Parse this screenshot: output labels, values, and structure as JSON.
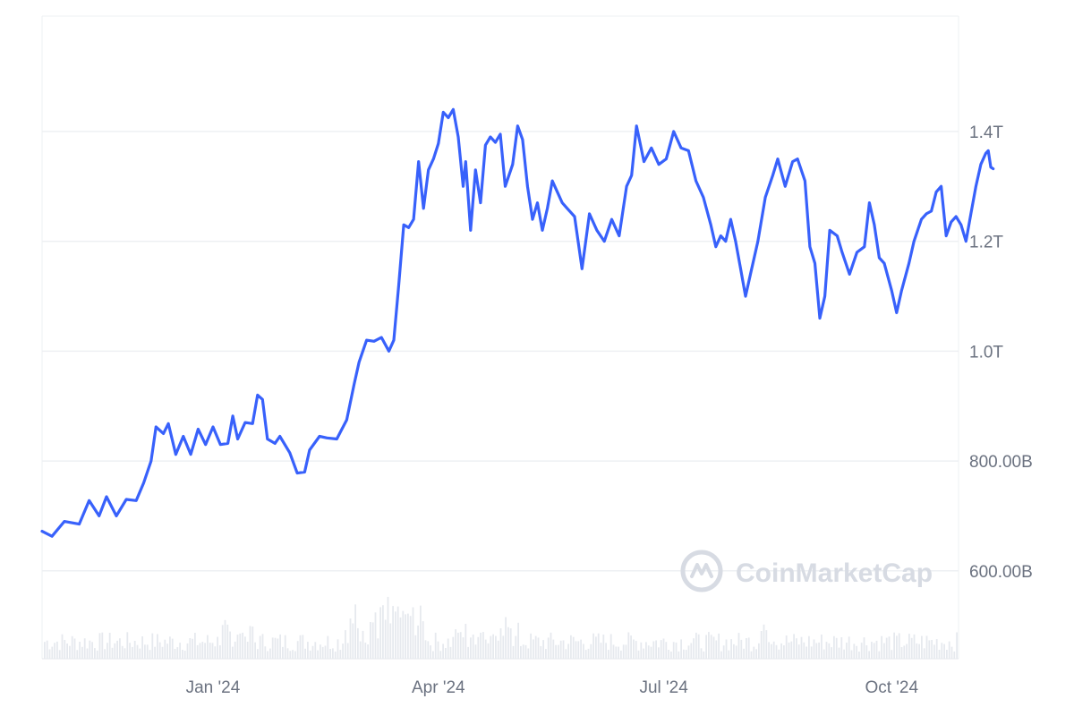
{
  "chart_data": {
    "type": "line",
    "title": "",
    "xlabel": "",
    "ylabel": "",
    "x_tick_labels": [
      "Jan '24",
      "Apr '24",
      "Jul '24",
      "Oct '24"
    ],
    "x_tick_dates": [
      "2024-01-01",
      "2024-04-01",
      "2024-07-01",
      "2024-10-01"
    ],
    "y_tick_labels": [
      "600.00B",
      "800.00B",
      "1.0T",
      "1.2T",
      "1.4T"
    ],
    "y_tick_values": [
      600,
      800,
      1000,
      1200,
      1400
    ],
    "y_unit": "billions USD",
    "ylim": [
      440,
      1610
    ],
    "xlim": [
      "2023-10-24",
      "2024-10-28"
    ],
    "grid": "horizontal",
    "series": [
      {
        "color": "#3861fb",
        "points": [
          [
            "2023-10-24",
            672
          ],
          [
            "2023-10-28",
            663
          ],
          [
            "2023-11-02",
            690
          ],
          [
            "2023-11-08",
            685
          ],
          [
            "2023-11-12",
            728
          ],
          [
            "2023-11-16",
            700
          ],
          [
            "2023-11-19",
            735
          ],
          [
            "2023-11-23",
            700
          ],
          [
            "2023-11-27",
            730
          ],
          [
            "2023-12-01",
            728
          ],
          [
            "2023-12-04",
            760
          ],
          [
            "2023-12-07",
            800
          ],
          [
            "2023-12-09",
            862
          ],
          [
            "2023-12-12",
            850
          ],
          [
            "2023-12-14",
            868
          ],
          [
            "2023-12-17",
            812
          ],
          [
            "2023-12-20",
            845
          ],
          [
            "2023-12-23",
            812
          ],
          [
            "2023-12-26",
            858
          ],
          [
            "2023-12-29",
            830
          ],
          [
            "2024-01-01",
            862
          ],
          [
            "2024-01-04",
            830
          ],
          [
            "2024-01-07",
            832
          ],
          [
            "2024-01-09",
            882
          ],
          [
            "2024-01-11",
            840
          ],
          [
            "2024-01-14",
            870
          ],
          [
            "2024-01-17",
            868
          ],
          [
            "2024-01-19",
            920
          ],
          [
            "2024-01-21",
            912
          ],
          [
            "2024-01-23",
            840
          ],
          [
            "2024-01-26",
            832
          ],
          [
            "2024-01-28",
            845
          ],
          [
            "2024-02-01",
            815
          ],
          [
            "2024-02-04",
            778
          ],
          [
            "2024-02-07",
            780
          ],
          [
            "2024-02-09",
            820
          ],
          [
            "2024-02-13",
            845
          ],
          [
            "2024-02-16",
            842
          ],
          [
            "2024-02-20",
            840
          ],
          [
            "2024-02-24",
            875
          ],
          [
            "2024-02-27",
            940
          ],
          [
            "2024-02-29",
            980
          ],
          [
            "2024-03-03",
            1020
          ],
          [
            "2024-03-06",
            1018
          ],
          [
            "2024-03-09",
            1025
          ],
          [
            "2024-03-12",
            1000
          ],
          [
            "2024-03-14",
            1020
          ],
          [
            "2024-03-16",
            1120
          ],
          [
            "2024-03-18",
            1230
          ],
          [
            "2024-03-20",
            1225
          ],
          [
            "2024-03-22",
            1240
          ],
          [
            "2024-03-24",
            1345
          ],
          [
            "2024-03-26",
            1260
          ],
          [
            "2024-03-28",
            1330
          ],
          [
            "2024-03-30",
            1350
          ],
          [
            "2024-04-01",
            1378
          ],
          [
            "2024-04-03",
            1435
          ],
          [
            "2024-04-05",
            1425
          ],
          [
            "2024-04-07",
            1440
          ],
          [
            "2024-04-09",
            1390
          ],
          [
            "2024-04-11",
            1300
          ],
          [
            "2024-04-12",
            1345
          ],
          [
            "2024-04-14",
            1220
          ],
          [
            "2024-04-16",
            1330
          ],
          [
            "2024-04-18",
            1270
          ],
          [
            "2024-04-20",
            1375
          ],
          [
            "2024-04-22",
            1390
          ],
          [
            "2024-04-24",
            1380
          ],
          [
            "2024-04-26",
            1395
          ],
          [
            "2024-04-28",
            1300
          ],
          [
            "2024-05-01",
            1340
          ],
          [
            "2024-05-03",
            1410
          ],
          [
            "2024-05-05",
            1385
          ],
          [
            "2024-05-07",
            1300
          ],
          [
            "2024-05-09",
            1240
          ],
          [
            "2024-05-11",
            1270
          ],
          [
            "2024-05-13",
            1220
          ],
          [
            "2024-05-15",
            1260
          ],
          [
            "2024-05-17",
            1310
          ],
          [
            "2024-05-19",
            1290
          ],
          [
            "2024-05-21",
            1270
          ],
          [
            "2024-05-23",
            1260
          ],
          [
            "2024-05-26",
            1245
          ],
          [
            "2024-05-29",
            1150
          ],
          [
            "2024-06-01",
            1250
          ],
          [
            "2024-06-04",
            1220
          ],
          [
            "2024-06-07",
            1200
          ],
          [
            "2024-06-10",
            1240
          ],
          [
            "2024-06-13",
            1210
          ],
          [
            "2024-06-16",
            1300
          ],
          [
            "2024-06-18",
            1320
          ],
          [
            "2024-06-20",
            1410
          ],
          [
            "2024-06-23",
            1345
          ],
          [
            "2024-06-26",
            1370
          ],
          [
            "2024-06-29",
            1340
          ],
          [
            "2024-07-02",
            1350
          ],
          [
            "2024-07-05",
            1400
          ],
          [
            "2024-07-08",
            1370
          ],
          [
            "2024-07-11",
            1365
          ],
          [
            "2024-07-14",
            1310
          ],
          [
            "2024-07-17",
            1280
          ],
          [
            "2024-07-20",
            1230
          ],
          [
            "2024-07-22",
            1190
          ],
          [
            "2024-07-24",
            1210
          ],
          [
            "2024-07-26",
            1200
          ],
          [
            "2024-07-28",
            1240
          ],
          [
            "2024-07-30",
            1200
          ],
          [
            "2024-08-01",
            1150
          ],
          [
            "2024-08-03",
            1100
          ],
          [
            "2024-08-05",
            1140
          ],
          [
            "2024-08-08",
            1200
          ],
          [
            "2024-08-11",
            1280
          ],
          [
            "2024-08-14",
            1320
          ],
          [
            "2024-08-16",
            1350
          ],
          [
            "2024-08-19",
            1300
          ],
          [
            "2024-08-22",
            1345
          ],
          [
            "2024-08-24",
            1350
          ],
          [
            "2024-08-27",
            1310
          ],
          [
            "2024-08-29",
            1190
          ],
          [
            "2024-08-31",
            1160
          ],
          [
            "2024-09-02",
            1060
          ],
          [
            "2024-09-04",
            1100
          ],
          [
            "2024-09-06",
            1220
          ],
          [
            "2024-09-09",
            1210
          ],
          [
            "2024-09-11",
            1180
          ],
          [
            "2024-09-14",
            1140
          ],
          [
            "2024-09-17",
            1180
          ],
          [
            "2024-09-20",
            1190
          ],
          [
            "2024-09-22",
            1270
          ],
          [
            "2024-09-24",
            1230
          ],
          [
            "2024-09-26",
            1170
          ],
          [
            "2024-09-28",
            1160
          ],
          [
            "2024-10-01",
            1110
          ],
          [
            "2024-10-03",
            1070
          ],
          [
            "2024-10-05",
            1110
          ],
          [
            "2024-10-08",
            1160
          ],
          [
            "2024-10-10",
            1200
          ],
          [
            "2024-10-13",
            1240
          ],
          [
            "2024-10-15",
            1250
          ],
          [
            "2024-10-17",
            1255
          ],
          [
            "2024-10-19",
            1290
          ],
          [
            "2024-10-21",
            1300
          ],
          [
            "2024-10-23",
            1210
          ],
          [
            "2024-10-25",
            1235
          ],
          [
            "2024-10-27",
            1245
          ],
          [
            "2024-10-29",
            1230
          ],
          [
            "2024-10-31",
            1200
          ],
          [
            "2024-11-02",
            1250
          ],
          [
            "2024-11-04",
            1300
          ],
          [
            "2024-11-06",
            1340
          ],
          [
            "2024-11-08",
            1360
          ],
          [
            "2024-11-09",
            1365
          ],
          [
            "2024-11-10",
            1335
          ],
          [
            "2024-11-11",
            1332
          ]
        ]
      }
    ],
    "volume_bars": "present at bottom (light gray), unlabeled"
  },
  "watermark": {
    "text": "CoinMarketCap",
    "icon": "coinmarketcap-logo-icon"
  },
  "colors": {
    "line": "#3861fb",
    "grid": "#eef0f3",
    "axis_text": "#6b7280",
    "volume": "#e6e9ee",
    "watermark": "#d7dbe3"
  }
}
